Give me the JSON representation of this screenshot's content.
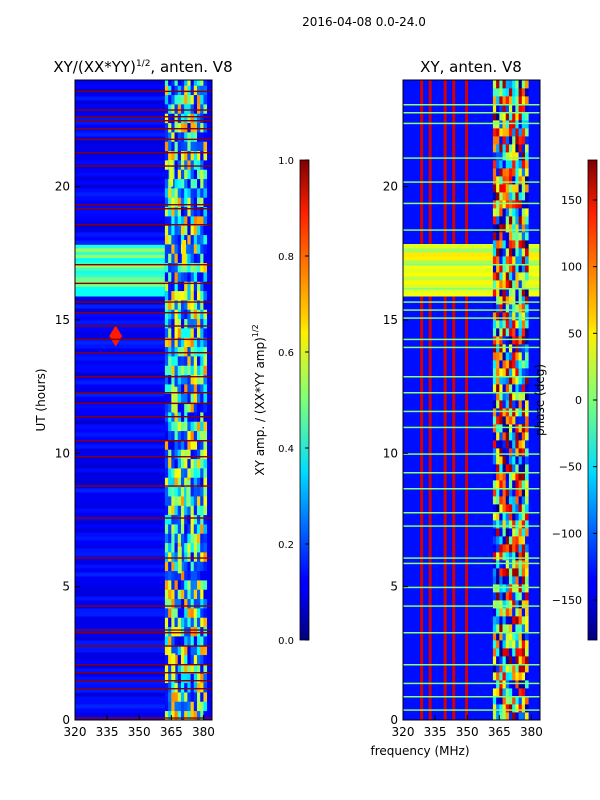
{
  "figure": {
    "suptitle": "2016-04-08 0.0-24.0",
    "xlabel_shared": "frequency (MHz)"
  },
  "chart_data": [
    {
      "type": "heatmap",
      "title_main": "XY/(XX*YY)",
      "title_sup": "1/2",
      "title_suffix": ", anten. V8",
      "xlabel": "",
      "ylabel": "UT (hours)",
      "xlim": [
        320,
        384
      ],
      "ylim": [
        0,
        24
      ],
      "xticks": [
        320,
        335,
        350,
        365,
        380
      ],
      "yticks": [
        0,
        5,
        10,
        15,
        20
      ],
      "colormap": "jet",
      "colorbar": {
        "label_main": "XY amp. / (XX*YY amp)",
        "label_sup": "1/2",
        "min": 0.0,
        "max": 1.0,
        "ticks": [
          "0.0",
          "0.2",
          "0.4",
          "0.6",
          "0.8",
          "1.0"
        ],
        "tick_values": [
          0.0,
          0.2,
          0.4,
          0.6,
          0.8,
          1.0
        ]
      },
      "background_value": 0.12,
      "flagged_rows_hours": [
        0.1,
        1.2,
        1.5,
        1.8,
        2.1,
        2.8,
        3.3,
        3.4,
        4.3,
        6.1,
        7.6,
        8.8,
        9.9,
        10.5,
        11.4,
        11.9,
        12.3,
        12.9,
        13.8,
        14.3,
        14.8,
        15.3,
        15.7,
        16.4,
        17.1,
        18.6,
        19.2,
        19.35,
        20.8,
        21.3,
        21.8,
        22.2,
        22.5,
        22.65,
        22.9,
        23.6
      ],
      "bright_band": {
        "ut_start": 15.9,
        "ut_end": 17.8,
        "value": 0.45,
        "freq_max": 362
      },
      "active_region": {
        "freq_start": 362,
        "freq_end": 381,
        "value_min": 0.3,
        "value_max": 0.75
      },
      "feature": {
        "ut": 14.4,
        "freq": 339,
        "value": 0.85
      },
      "data_points": [
        {
          "freq": 364,
          "ut": 20.5,
          "value": 0.6
        },
        {
          "freq": 370,
          "ut": 17.5,
          "value": 0.65
        },
        {
          "freq": 366,
          "ut": 12.0,
          "value": 0.55
        },
        {
          "freq": 372,
          "ut": 8.5,
          "value": 0.5
        },
        {
          "freq": 368,
          "ut": 6.0,
          "value": 0.55
        },
        {
          "freq": 365,
          "ut": 2.0,
          "value": 0.6
        }
      ]
    },
    {
      "type": "heatmap",
      "title": "XY, anten. V8",
      "xlabel": "",
      "ylabel": "",
      "xlim": [
        320,
        384
      ],
      "ylim": [
        0,
        24
      ],
      "xticks": [
        320,
        335,
        350,
        365,
        380
      ],
      "yticks": [
        0,
        5,
        10,
        15,
        20
      ],
      "colormap": "jet",
      "colorbar": {
        "label": "phase (deg)",
        "min": -180,
        "max": 180,
        "ticks": [
          "−150",
          "−100",
          "−50",
          "0",
          "50",
          "100",
          "150"
        ],
        "tick_values": [
          -150,
          -100,
          -50,
          0,
          50,
          100,
          150
        ]
      },
      "background_value": -130,
      "flagged_rows_hours": [
        0.4,
        0.9,
        1.4,
        2.1,
        3.3,
        4.3,
        5.0,
        5.9,
        6.1,
        7.3,
        7.8,
        8.7,
        9.3,
        10.0,
        11.0,
        11.6,
        12.3,
        12.9,
        14.0,
        14.3,
        15.1,
        15.4,
        15.7,
        16.2,
        17.1,
        18.4,
        19.4,
        20.2,
        21.1,
        22.4,
        22.8,
        23.1
      ],
      "yellow_band": {
        "ut_start": 15.9,
        "ut_end": 17.8,
        "value": 30
      },
      "active_region": {
        "freq_start": 362,
        "freq_end": 378
      },
      "red_columns_mhz": [
        328,
        332,
        339,
        343,
        349
      ]
    }
  ]
}
